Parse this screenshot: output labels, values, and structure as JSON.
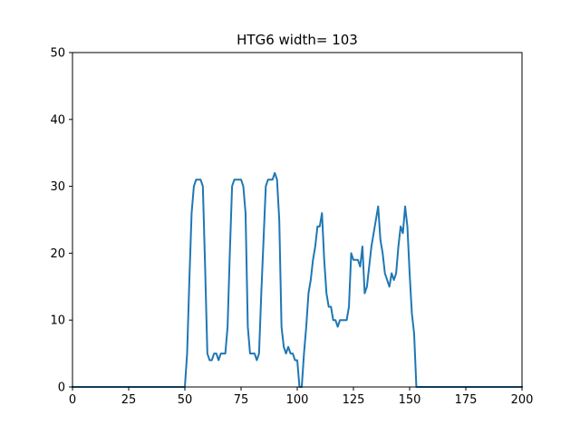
{
  "chart_data": {
    "type": "line",
    "title": "HTG6 width= 103",
    "xlabel": "",
    "ylabel": "",
    "xlim": [
      0,
      200
    ],
    "ylim": [
      0,
      50
    ],
    "xticks": [
      0,
      25,
      50,
      75,
      100,
      125,
      150,
      175,
      200
    ],
    "yticks": [
      0,
      10,
      20,
      30,
      40,
      50
    ],
    "grid": false,
    "line_color": "#1f77b4",
    "series": [
      {
        "x": [
          0,
          49,
          50,
          51,
          52,
          53,
          54,
          55,
          56,
          57,
          58,
          59,
          60,
          61,
          62,
          63,
          64,
          65,
          66,
          67,
          68,
          69,
          70,
          71,
          72,
          73,
          74,
          75,
          76,
          77,
          78,
          79,
          80,
          81,
          82,
          83,
          84,
          85,
          86,
          87,
          88,
          89,
          90,
          91,
          92,
          93,
          94,
          95,
          96,
          97,
          98,
          99,
          100,
          101,
          102,
          103,
          104,
          105,
          106,
          107,
          108,
          109,
          110,
          111,
          112,
          113,
          114,
          115,
          116,
          117,
          118,
          119,
          120,
          121,
          122,
          123,
          124,
          125,
          126,
          127,
          128,
          129,
          130,
          131,
          132,
          133,
          134,
          135,
          136,
          137,
          138,
          139,
          140,
          141,
          142,
          143,
          144,
          145,
          146,
          147,
          148,
          149,
          150,
          151,
          152,
          153,
          154,
          200
        ],
        "y": [
          0,
          0,
          0,
          5,
          16,
          26,
          30,
          31,
          31,
          31,
          30,
          18,
          5,
          4,
          4,
          5,
          5,
          4,
          5,
          5,
          5,
          9,
          20,
          30,
          31,
          31,
          31,
          31,
          30,
          26,
          9,
          5,
          5,
          5,
          4,
          5,
          14,
          22,
          30,
          31,
          31,
          31,
          32,
          31,
          25,
          9,
          6,
          5,
          6,
          5,
          5,
          4,
          4,
          0,
          0,
          5,
          9,
          14,
          16,
          19,
          21,
          24,
          24,
          26,
          19,
          14,
          12,
          12,
          10,
          10,
          9,
          10,
          10,
          10,
          10,
          12,
          20,
          19,
          19,
          19,
          18,
          21,
          14,
          15,
          18,
          21,
          23,
          25,
          27,
          22,
          20,
          17,
          16,
          15,
          17,
          16,
          17,
          21,
          24,
          23,
          27,
          24,
          17,
          11,
          8,
          0,
          0,
          0
        ]
      }
    ]
  }
}
